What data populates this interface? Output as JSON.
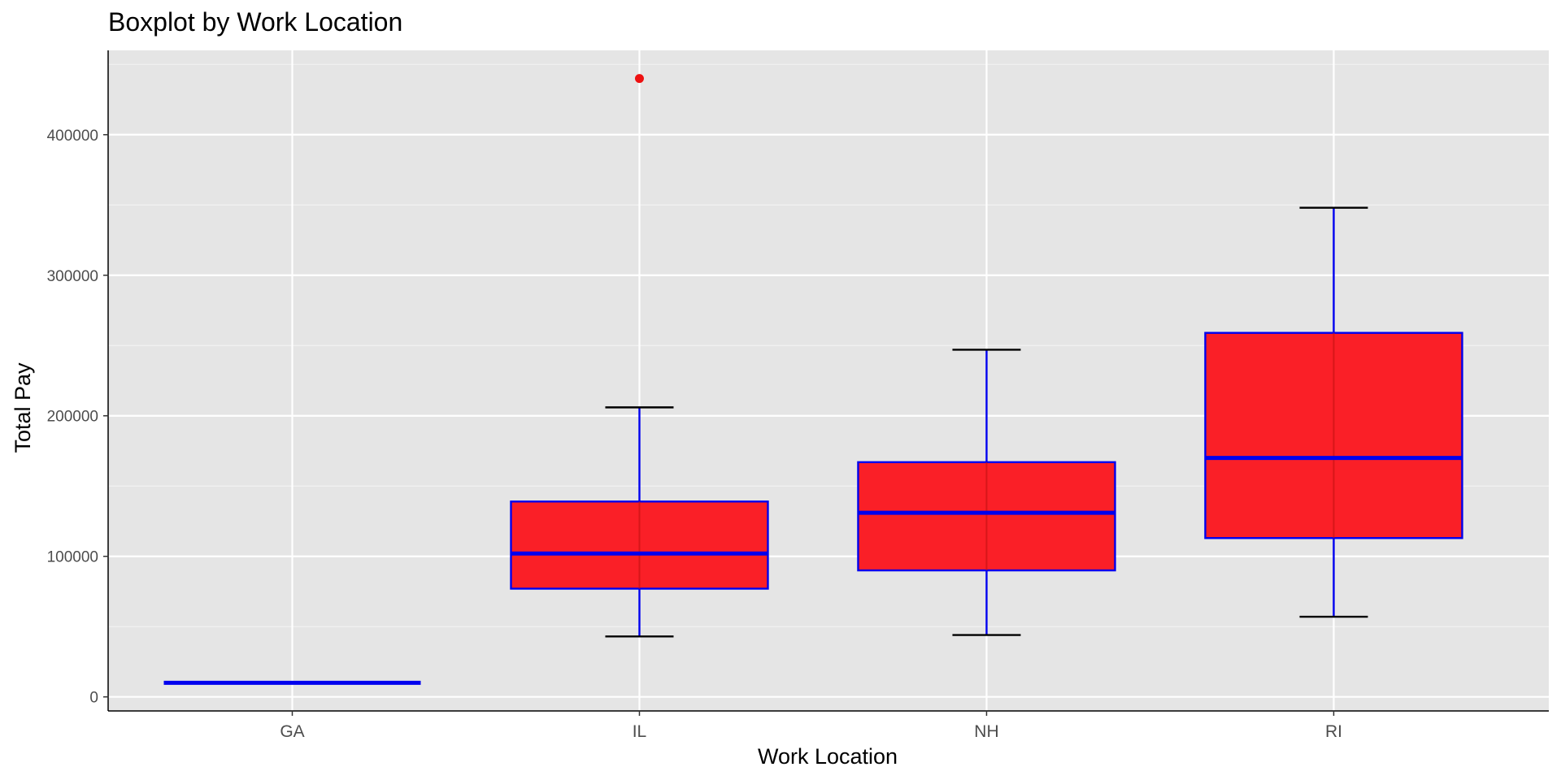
{
  "chart_data": {
    "type": "boxplot",
    "title": "Boxplot by Work Location",
    "xlabel": "Work Location",
    "ylabel": "Total Pay",
    "ylim": [
      -10000,
      460000
    ],
    "yticks": [
      0,
      100000,
      200000,
      300000,
      400000
    ],
    "ytick_labels": [
      "0",
      "100000",
      "200000",
      "300000",
      "400000"
    ],
    "categories": [
      "GA",
      "IL",
      "NH",
      "RI"
    ],
    "boxes": [
      {
        "category": "GA",
        "min": 10000,
        "q1": 10000,
        "median": 10000,
        "q3": 10000,
        "max": 10000,
        "outliers": []
      },
      {
        "category": "IL",
        "min": 43000,
        "q1": 77000,
        "median": 102000,
        "q3": 139000,
        "max": 206000,
        "outliers": [
          440000
        ]
      },
      {
        "category": "NH",
        "min": 44000,
        "q1": 90000,
        "median": 131000,
        "q3": 167000,
        "max": 247000,
        "outliers": []
      },
      {
        "category": "RI",
        "min": 57000,
        "q1": 113000,
        "median": 170000,
        "q3": 259000,
        "max": 348000,
        "outliers": []
      }
    ],
    "grid": true,
    "legend": "none",
    "colors": {
      "box_fill": "#fa1820",
      "box_border": "#0000ee",
      "whisker": "#0000ee",
      "whisker_cap": "#000000",
      "outlier": "#ee1111",
      "panel_background": "#e5e5e5",
      "grid_major": "#ffffff",
      "grid_minor": "#f2f2f2",
      "axis_line": "#000000"
    }
  }
}
